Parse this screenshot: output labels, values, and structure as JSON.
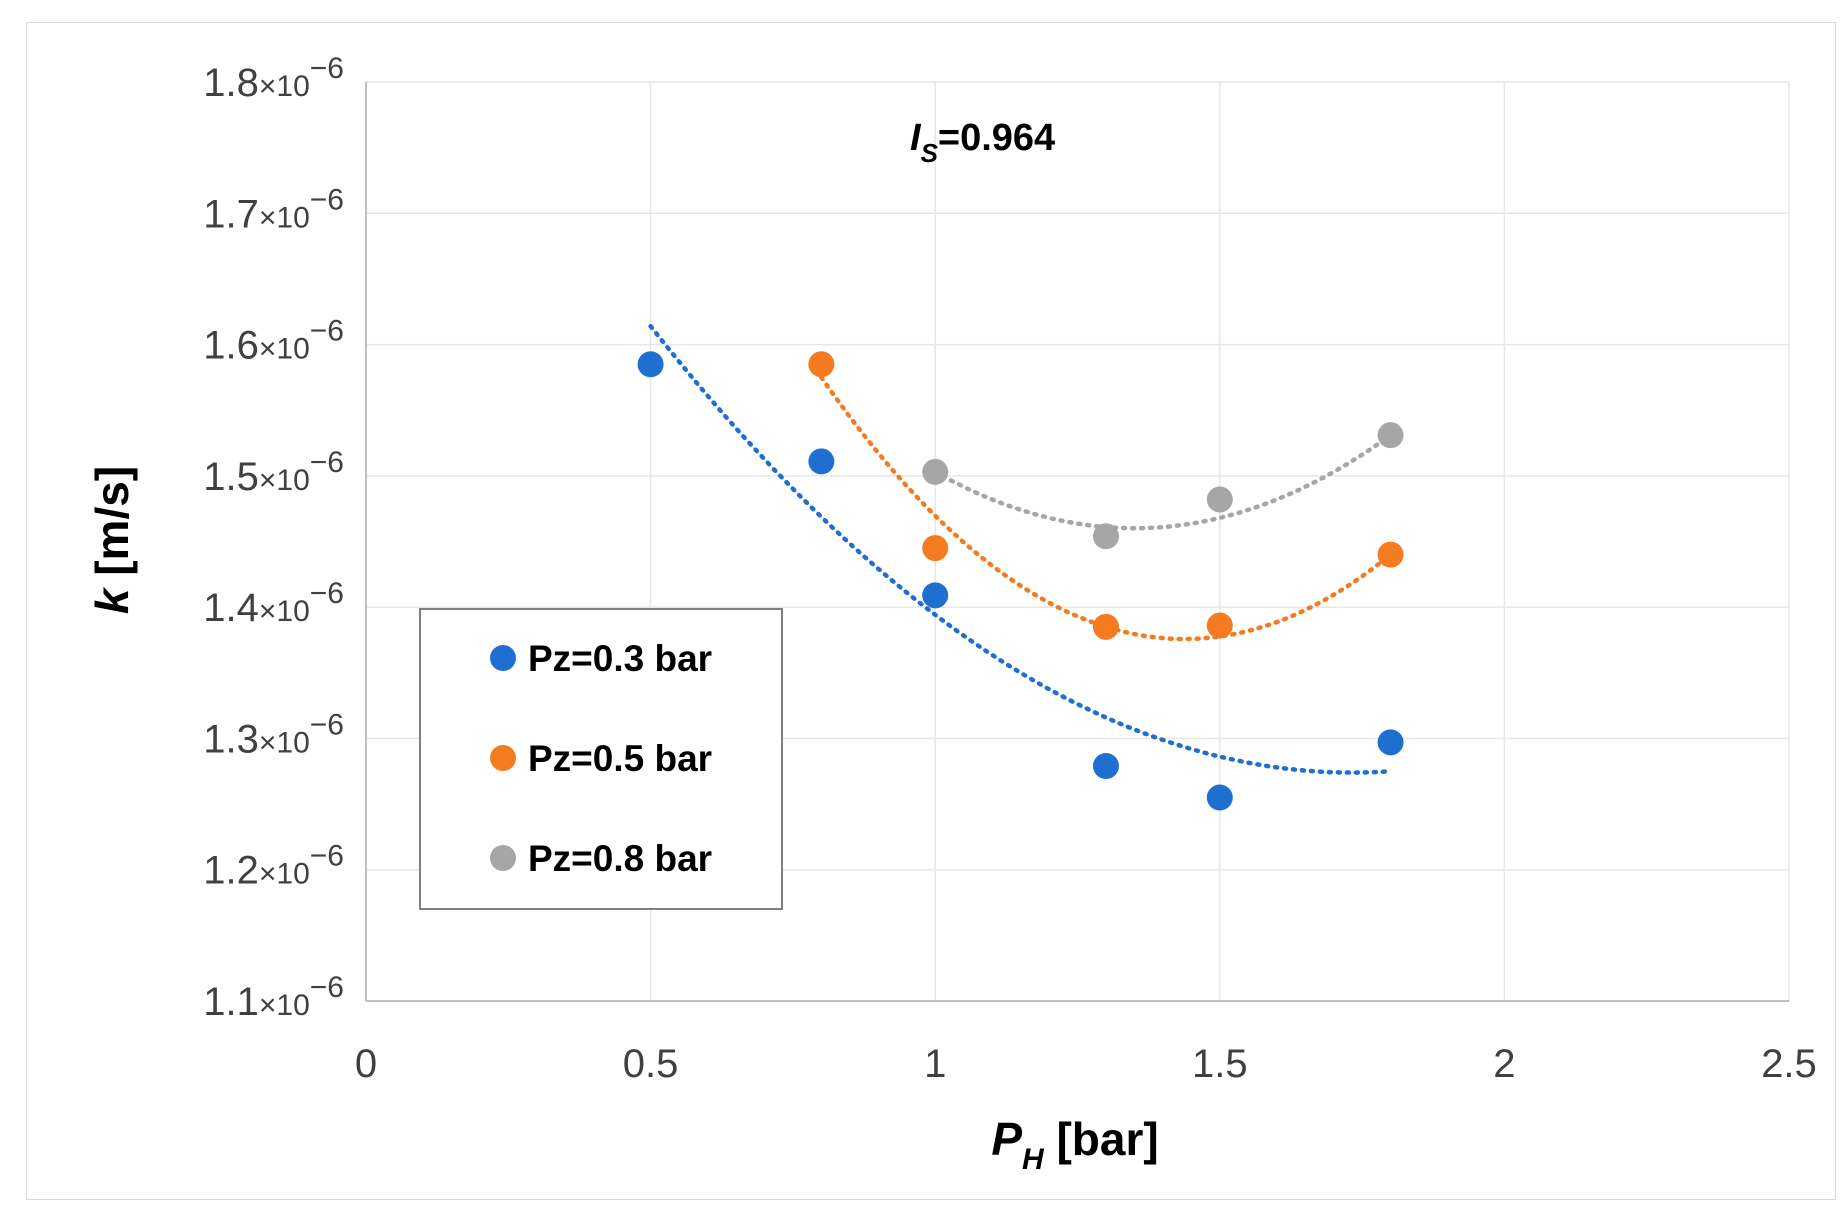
{
  "chart_data": {
    "type": "scatter",
    "title": "",
    "xlabel": {
      "main": "P",
      "sub": "H",
      "unit": " [bar]"
    },
    "ylabel": {
      "main": "k",
      "unit": " [m/s]"
    },
    "xlim": [
      0,
      2.5
    ],
    "ylim": [
      1.1e-06,
      1.8e-06
    ],
    "x_ticks": [
      0,
      0.5,
      1,
      1.5,
      2,
      2.5
    ],
    "x_tick_labels": [
      "0",
      "0.5",
      "1",
      "1.5",
      "2",
      "2.5"
    ],
    "y_ticks": [
      1.1e-06,
      1.2e-06,
      1.3e-06,
      1.4e-06,
      1.5e-06,
      1.6e-06,
      1.7e-06,
      1.8e-06
    ],
    "y_tick_labels": [
      {
        "mantissa": "1.1",
        "times": "×10",
        "exp": "−6"
      },
      {
        "mantissa": "1.2",
        "times": "×10",
        "exp": "−6"
      },
      {
        "mantissa": "1.3",
        "times": "×10",
        "exp": "−6"
      },
      {
        "mantissa": "1.4",
        "times": "×10",
        "exp": "−6"
      },
      {
        "mantissa": "1.5",
        "times": "×10",
        "exp": "−6"
      },
      {
        "mantissa": "1.6",
        "times": "×10",
        "exp": "−6"
      },
      {
        "mantissa": "1.7",
        "times": "×10",
        "exp": "−6"
      },
      {
        "mantissa": "1.8",
        "times": "×10",
        "exp": "−6"
      }
    ],
    "grid": true,
    "legend_position": "middle-left",
    "annotation": {
      "main": "I",
      "sub": "S",
      "rest": "=0.964"
    },
    "series": [
      {
        "name": "Pz=0.3 bar",
        "color": "#1f6fd0",
        "x": [
          0.5,
          0.8,
          1.0,
          1.3,
          1.5,
          1.8
        ],
        "y": [
          1.585e-06,
          1.511e-06,
          1.409e-06,
          1.279e-06,
          1.255e-06,
          1.297e-06
        ],
        "trend": {
          "type": "poly2",
          "x_range": [
            0.5,
            1.8
          ],
          "points": [
            [
              0.5,
              1.614e-06
            ],
            [
              1.15,
              1.35e-06
            ],
            [
              1.8,
              1.275e-06
            ]
          ]
        }
      },
      {
        "name": "Pz=0.5 bar",
        "color": "#f47b20",
        "x": [
          0.8,
          1.0,
          1.3,
          1.5,
          1.8
        ],
        "y": [
          1.585e-06,
          1.445e-06,
          1.385e-06,
          1.386e-06,
          1.44e-06
        ],
        "trend": {
          "type": "poly2",
          "x_range": [
            0.8,
            1.8
          ],
          "points": [
            [
              0.8,
              1.575e-06
            ],
            [
              1.3,
              1.385e-06
            ],
            [
              1.8,
              1.44e-06
            ]
          ]
        }
      },
      {
        "name": "Pz=0.8 bar",
        "color": "#a6a6a6",
        "x": [
          1.0,
          1.3,
          1.5,
          1.8
        ],
        "y": [
          1.503e-06,
          1.454e-06,
          1.482e-06,
          1.531e-06
        ],
        "trend": {
          "type": "poly2",
          "x_range": [
            1.0,
            1.8
          ],
          "points": [
            [
              1.0,
              1.503e-06
            ],
            [
              1.4,
              1.461e-06
            ],
            [
              1.8,
              1.531e-06
            ]
          ]
        }
      }
    ]
  }
}
